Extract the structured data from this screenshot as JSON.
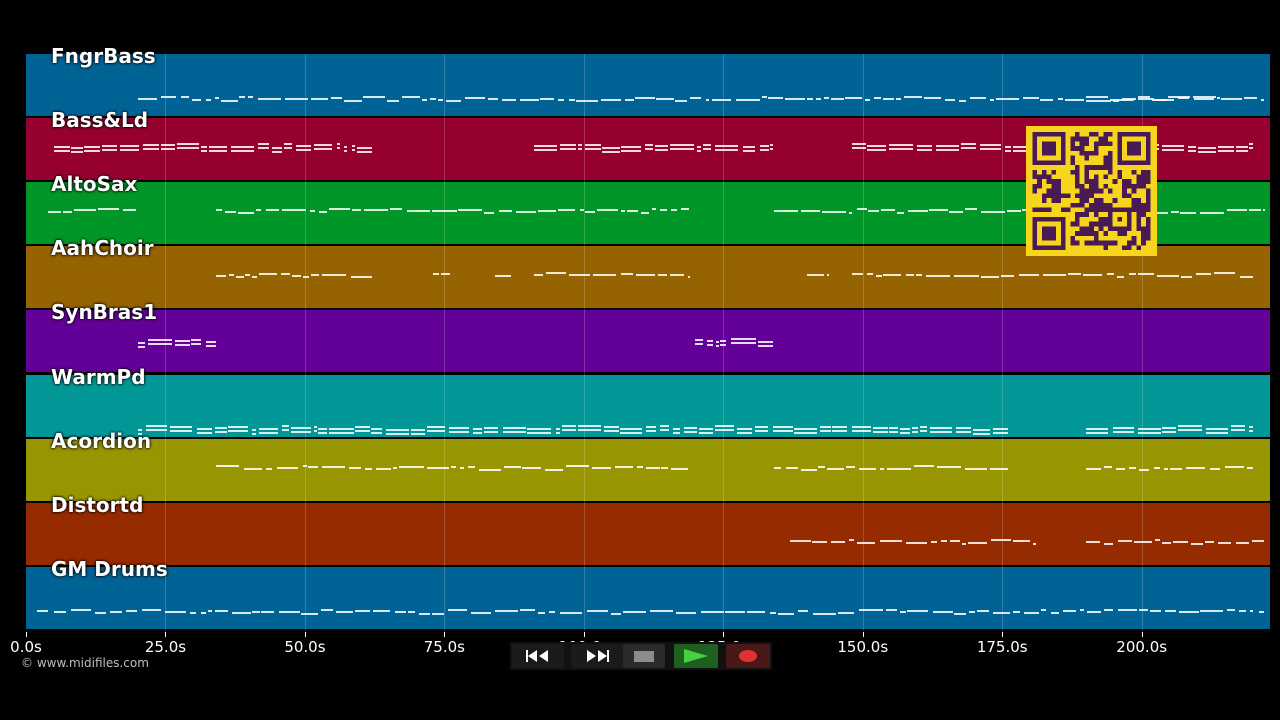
{
  "tracks": [
    {
      "name": "FngrBass",
      "color": "#006396",
      "notes": [
        [
          20,
          214
        ],
        [
          190,
          222
        ]
      ]
    },
    {
      "name": "Bass&Ld",
      "color": "#96002f",
      "notes": [
        [
          5,
          62
        ],
        [
          91,
          134
        ],
        [
          148,
          220
        ]
      ]
    },
    {
      "name": "AltoSax",
      "color": "#009728",
      "notes": [
        [
          4,
          20
        ],
        [
          34,
          119
        ],
        [
          134,
          222
        ]
      ]
    },
    {
      "name": "AahChoir",
      "color": "#956300",
      "notes": [
        [
          34,
          62
        ],
        [
          73,
          76
        ],
        [
          84,
          87
        ],
        [
          91,
          119
        ],
        [
          140,
          144
        ],
        [
          148,
          220
        ]
      ]
    },
    {
      "name": "SynBras1",
      "color": "#630097",
      "notes": [
        [
          20,
          34
        ],
        [
          120,
          134
        ]
      ]
    },
    {
      "name": "WarmPd",
      "color": "#009796",
      "notes": [
        [
          20,
          176
        ],
        [
          190,
          220
        ]
      ]
    },
    {
      "name": "Acordion",
      "color": "#979600",
      "notes": [
        [
          34,
          119
        ],
        [
          134,
          176
        ],
        [
          190,
          220
        ]
      ]
    },
    {
      "name": "Distortd",
      "color": "#962b00",
      "notes": [
        [
          137,
          181
        ],
        [
          190,
          222
        ]
      ]
    },
    {
      "name": "GM Drums",
      "color": "#006396",
      "notes": [
        [
          2,
          4
        ],
        [
          5,
          220
        ],
        [
          221,
          222
        ]
      ]
    }
  ],
  "axis": {
    "ticks": [
      "0.0s",
      "25.0s",
      "50.0s",
      "75.0s",
      "100.0s",
      "125.0s",
      "150.0s",
      "175.0s",
      "200.0s"
    ],
    "max_seconds": 223
  },
  "copyright": "© www.midifiles.com",
  "transport": {
    "buttons": [
      {
        "icon": "rewind-icon"
      },
      {
        "icon": "fast-forward-icon"
      },
      {
        "icon": "stop-icon"
      },
      {
        "icon": "play-icon"
      },
      {
        "icon": "record-icon"
      }
    ]
  },
  "qr": {
    "icon": "qr-code-icon",
    "fg": "#4a1a55",
    "bg": "#f7d51d"
  }
}
